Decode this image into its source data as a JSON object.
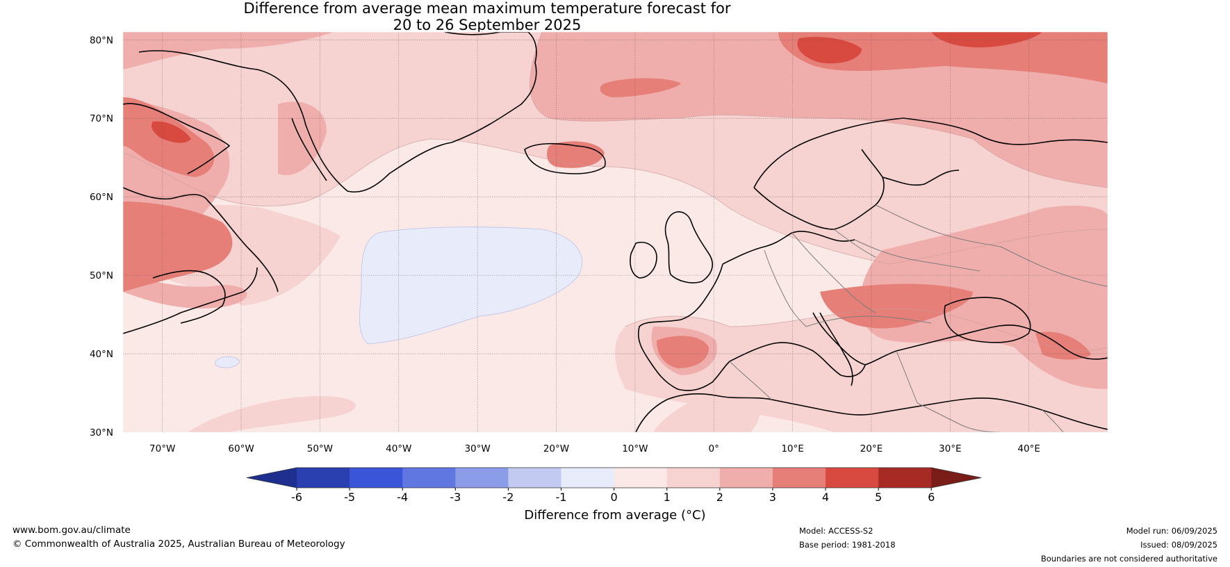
{
  "title": {
    "line1": "Difference from average mean maximum temperature forecast for",
    "line2": "20 to 26 September 2025"
  },
  "map": {
    "lon_range": [
      -75,
      50
    ],
    "lat_range": [
      30,
      81
    ],
    "lat_ticks": [
      {
        "value": 30,
        "label": "30°N"
      },
      {
        "value": 40,
        "label": "40°N"
      },
      {
        "value": 50,
        "label": "50°N"
      },
      {
        "value": 60,
        "label": "60°N"
      },
      {
        "value": 70,
        "label": "70°N"
      },
      {
        "value": 80,
        "label": "80°N"
      }
    ],
    "lon_ticks": [
      {
        "value": -70,
        "label": "70°W"
      },
      {
        "value": -60,
        "label": "60°W"
      },
      {
        "value": -50,
        "label": "50°W"
      },
      {
        "value": -40,
        "label": "40°W"
      },
      {
        "value": -30,
        "label": "30°W"
      },
      {
        "value": -20,
        "label": "20°W"
      },
      {
        "value": -10,
        "label": "10°W"
      },
      {
        "value": 0,
        "label": "0°"
      },
      {
        "value": 10,
        "label": "10°E"
      },
      {
        "value": 20,
        "label": "20°E"
      },
      {
        "value": 30,
        "label": "30°E"
      },
      {
        "value": 40,
        "label": "40°E"
      }
    ]
  },
  "colorbar": {
    "title": "Difference from average (°C)",
    "labels": [
      "-6",
      "-5",
      "-4",
      "-3",
      "-2",
      "-1",
      "0",
      "1",
      "2",
      "3",
      "4",
      "5",
      "6"
    ],
    "colors": [
      "#1f2f8f",
      "#2a3fb0",
      "#3a55d8",
      "#6077e2",
      "#8b9ce8",
      "#c2caf2",
      "#e8ecfa",
      "#fbe9e7",
      "#f6d2d0",
      "#efaeab",
      "#e57f78",
      "#d84a40",
      "#a82a24",
      "#7a1c18"
    ]
  },
  "footer": {
    "website": "www.bom.gov.au/climate",
    "copyright": "© Commonwealth of Australia 2025, Australian Bureau of Meteorology",
    "model": "Model: ACCESS-S2",
    "base_period": "Base period: 1981-2018",
    "model_run": "Model run: 06/09/2025",
    "issued": "Issued: 08/09/2025",
    "disclaimer": "Boundaries are not considered authoritative"
  }
}
